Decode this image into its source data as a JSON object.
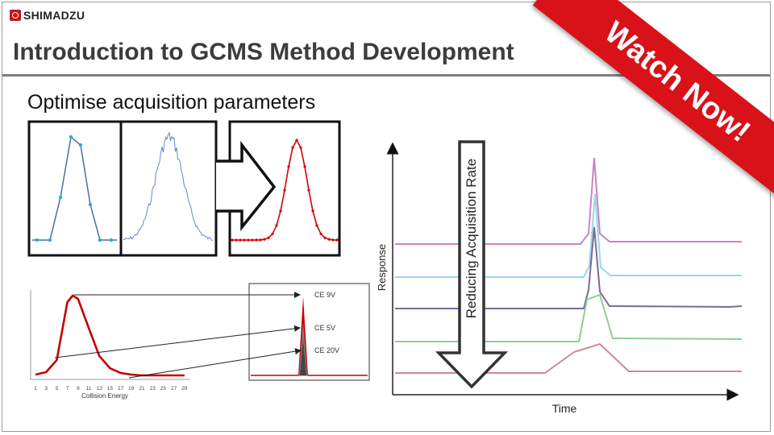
{
  "brand": {
    "name": "SHIMADZU",
    "logo_color": "#c8161d"
  },
  "title": "Introduction to GCMS Method Development",
  "subtitle": "Optimise acquisition parameters",
  "ribbon": {
    "label": "Watch Now!",
    "color": "#d9121a"
  },
  "collision_chart": {
    "xlabel": "Collision Energy",
    "ticks": [
      "1",
      "3",
      "5",
      "7",
      "9",
      "11",
      "13",
      "15",
      "17",
      "19",
      "21",
      "23",
      "25",
      "27",
      "29"
    ],
    "curve": [
      [
        1,
        0.02
      ],
      [
        3,
        0.05
      ],
      [
        5,
        0.2
      ],
      [
        7,
        0.92
      ],
      [
        8,
        1.0
      ],
      [
        9,
        0.96
      ],
      [
        11,
        0.6
      ],
      [
        13,
        0.25
      ],
      [
        15,
        0.1
      ],
      [
        17,
        0.04
      ],
      [
        19,
        0.02
      ],
      [
        21,
        0.01
      ],
      [
        23,
        0.01
      ],
      [
        25,
        0.01
      ],
      [
        27,
        0.01
      ],
      [
        29,
        0.01
      ]
    ],
    "color": "#c00000"
  },
  "ce_labels": [
    "CE 9V",
    "CE 5V",
    "CE 20V"
  ],
  "acquisition_chart": {
    "ylabel": "Response",
    "xlabel": "Time",
    "arrow_label": "Reducing Acquisition Rate",
    "series_colors": [
      "#c983c9",
      "#9ad7e6",
      "#7a6a9c",
      "#8fcf8f",
      "#c98a9a"
    ]
  }
}
